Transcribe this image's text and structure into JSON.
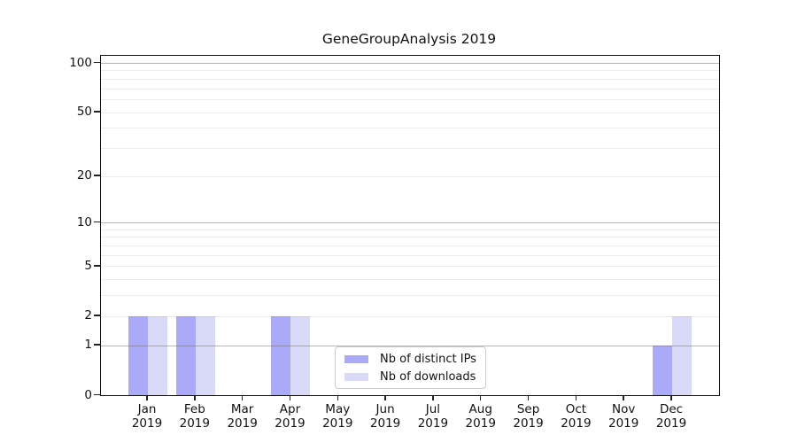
{
  "title": "GeneGroupAnalysis 2019",
  "chart_data": {
    "type": "bar",
    "title": "GeneGroupAnalysis 2019",
    "categories": [
      "Jan 2019",
      "Feb 2019",
      "Mar 2019",
      "Apr 2019",
      "May 2019",
      "Jun 2019",
      "Jul 2019",
      "Aug 2019",
      "Sep 2019",
      "Oct 2019",
      "Nov 2019",
      "Dec 2019"
    ],
    "series": [
      {
        "name": "Nb of distinct IPs",
        "color": "#aaaaf8",
        "values": [
          2,
          2,
          0,
          2,
          0,
          0,
          0,
          0,
          0,
          0,
          0,
          1
        ]
      },
      {
        "name": "Nb of downloads",
        "color": "#d9d9f8",
        "values": [
          2,
          2,
          0,
          2,
          0,
          0,
          0,
          0,
          0,
          0,
          0,
          2
        ]
      }
    ],
    "yscale": "log1p",
    "ylim": [
      0,
      110
    ],
    "y_tick_values": [
      0,
      1,
      2,
      5,
      10,
      20,
      50,
      100
    ],
    "y_tick_labels": [
      "0",
      "1",
      "2",
      "5",
      "10",
      "20",
      "50",
      "100"
    ],
    "y_major_gridlines": [
      1,
      10,
      100
    ],
    "y_minor_gridlines": [
      2,
      3,
      4,
      5,
      6,
      7,
      8,
      9,
      20,
      30,
      40,
      50,
      60,
      70,
      80,
      90
    ],
    "grid": "horizontal",
    "legend_position": "lower center",
    "xlabel": "",
    "ylabel": "",
    "colors": {
      "major_grid": "#c6c6c6",
      "minor_grid": "#ececec",
      "spine": "#111111",
      "bar_distinct_ips": "#aaaaf8",
      "bar_downloads": "#d9d9f8"
    }
  }
}
